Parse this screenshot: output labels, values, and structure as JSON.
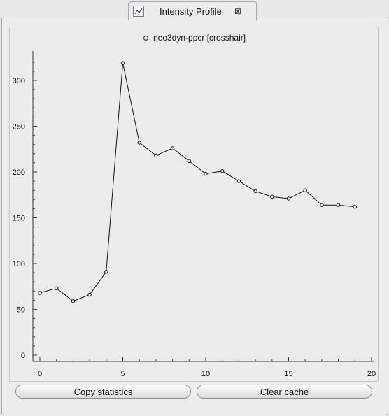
{
  "tab": {
    "title": "Intensity Profile",
    "close_glyph": "⊠",
    "icon": "chart-icon"
  },
  "legend": {
    "series_name": "neo3dyn-ppcr [crosshair]"
  },
  "buttons": {
    "copy_statistics": "Copy statistics",
    "clear_cache": "Clear cache"
  },
  "chart_data": {
    "type": "line",
    "title": "",
    "xlabel": "",
    "ylabel": "",
    "xlim": [
      0,
      20
    ],
    "ylim": [
      0,
      330
    ],
    "xticks": [
      0,
      5,
      10,
      15,
      20
    ],
    "yticks": [
      0,
      50,
      100,
      150,
      200,
      250,
      300
    ],
    "legend_position": "top-center",
    "grid": false,
    "series": [
      {
        "name": "neo3dyn-ppcr [crosshair]",
        "x": [
          0,
          1,
          2,
          3,
          4,
          5,
          6,
          7,
          8,
          9,
          10,
          11,
          12,
          13,
          14,
          15,
          16,
          17,
          18,
          19
        ],
        "y": [
          68,
          73,
          59,
          66,
          91,
          319,
          232,
          218,
          226,
          212,
          198,
          201,
          190,
          179,
          173,
          171,
          180,
          164,
          164,
          162
        ]
      }
    ]
  }
}
